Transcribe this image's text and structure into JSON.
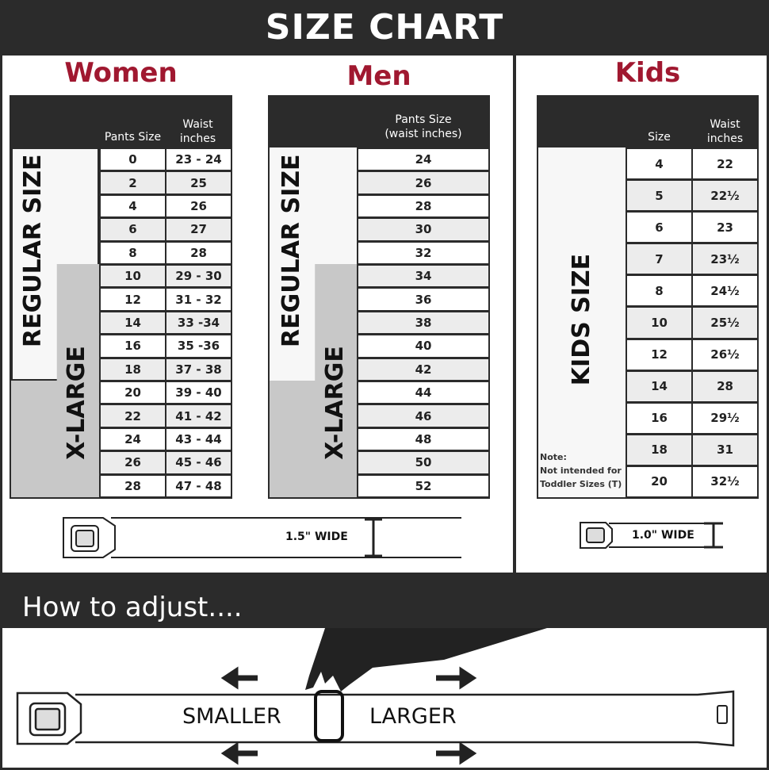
{
  "title": "SIZE CHART",
  "women": {
    "heading": "Women",
    "col_size": "Pants Size",
    "col_waist": "Waist inches",
    "regular_label": "REGULAR SIZE",
    "xl_label": "X-LARGE",
    "rows": [
      [
        "0",
        "23 - 24"
      ],
      [
        "2",
        "25"
      ],
      [
        "4",
        "26"
      ],
      [
        "6",
        "27"
      ],
      [
        "8",
        "28"
      ],
      [
        "10",
        "29 - 30"
      ],
      [
        "12",
        "31 - 32"
      ],
      [
        "14",
        "33 -34"
      ],
      [
        "16",
        "35 -36"
      ],
      [
        "18",
        "37 - 38"
      ],
      [
        "20",
        "39 - 40"
      ],
      [
        "22",
        "41 - 42"
      ],
      [
        "24",
        "43 - 44"
      ],
      [
        "26",
        "45 - 46"
      ],
      [
        "28",
        "47 - 48"
      ]
    ],
    "belt_width": "1.5\" WIDE"
  },
  "men": {
    "heading": "Men",
    "col_size": "Pants Size (waist inches)",
    "regular_label": "REGULAR SIZE",
    "xl_label": "X-LARGE",
    "rows": [
      "24",
      "26",
      "28",
      "30",
      "32",
      "34",
      "36",
      "38",
      "40",
      "42",
      "44",
      "46",
      "48",
      "50",
      "52"
    ]
  },
  "kids": {
    "heading": "Kids",
    "col_size": "Size",
    "col_waist": "Waist inches",
    "label": "KIDS SIZE",
    "note": "Note:\nNot intended for\nToddler Sizes (T)",
    "rows": [
      [
        "4",
        "22"
      ],
      [
        "5",
        "22½"
      ],
      [
        "6",
        "23"
      ],
      [
        "7",
        "23½"
      ],
      [
        "8",
        "24½"
      ],
      [
        "10",
        "25½"
      ],
      [
        "12",
        "26½"
      ],
      [
        "14",
        "28"
      ],
      [
        "16",
        "29½"
      ],
      [
        "18",
        "31"
      ],
      [
        "20",
        "32½"
      ]
    ],
    "belt_width": "1.0\" WIDE"
  },
  "adjust": {
    "heading": "How to adjust....",
    "smaller": "SMALLER",
    "larger": "LARGER"
  },
  "colors": {
    "dark": "#2b2b2b",
    "accent": "#a01830",
    "xl_fill": "#c8c8c8"
  }
}
